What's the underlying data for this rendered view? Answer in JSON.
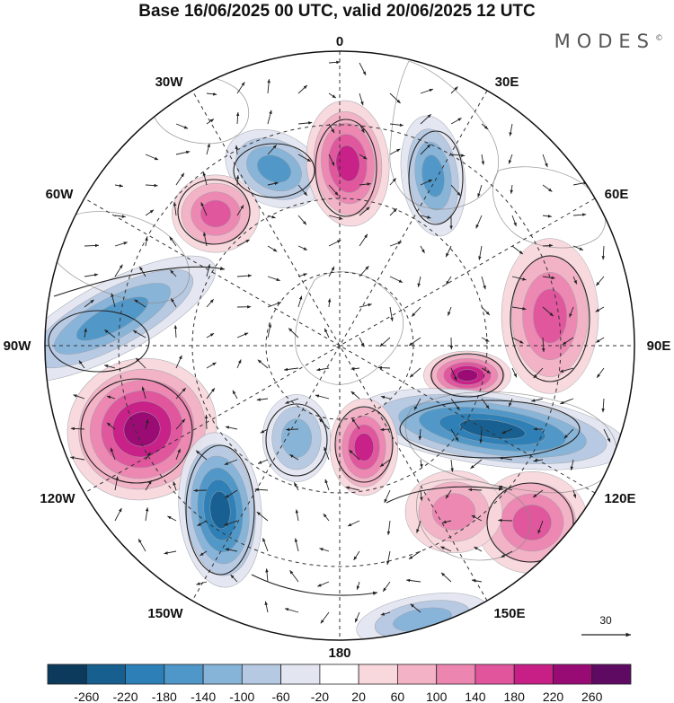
{
  "title": "Base 16/06/2025 00 UTC, valid 20/06/2025 12 UTC",
  "brand": "MODES",
  "brand_mark": "©",
  "longitude_labels": {
    "lon_0": "0",
    "lon_30e": "30E",
    "lon_60e": "60E",
    "lon_90e": "90E",
    "lon_120e": "120E",
    "lon_150e": "150E",
    "lon_180": "180",
    "lon_150w": "150W",
    "lon_120w": "120W",
    "lon_90w": "90W",
    "lon_60w": "60W",
    "lon_30w": "30W"
  },
  "vector_reference": {
    "value": "30"
  },
  "colorbar": {
    "ticks": [
      "-260",
      "-220",
      "-180",
      "-140",
      "-100",
      "-60",
      "-20",
      "20",
      "60",
      "100",
      "140",
      "180",
      "220",
      "260"
    ],
    "colors": [
      "#0b3a5c",
      "#175f8f",
      "#2d7fb7",
      "#4f97c8",
      "#86b3d8",
      "#b6c9e2",
      "#e3e6f1",
      "#ffffff",
      "#f8d7dd",
      "#f3b2c6",
      "#ec86b1",
      "#e0559c",
      "#c71f86",
      "#980b74",
      "#5e0a63"
    ]
  },
  "anomalies": [
    {
      "name": "northwest-low",
      "value": -140
    },
    {
      "name": "north-high",
      "value": 180
    },
    {
      "name": "north-east-low",
      "value": -140
    },
    {
      "name": "northwest-high",
      "value": 140
    },
    {
      "name": "west-trough",
      "value": -140
    },
    {
      "name": "east-high",
      "value": 140
    },
    {
      "name": "east-center-high",
      "value": 220
    },
    {
      "name": "east-trough",
      "value": -220
    },
    {
      "name": "southwest-high",
      "value": 220
    },
    {
      "name": "south-west-low",
      "value": -220
    },
    {
      "name": "south-center-high",
      "value": 180
    },
    {
      "name": "south-center-low",
      "value": -100
    },
    {
      "name": "southeast-high",
      "value": 140
    },
    {
      "name": "south-high",
      "value": 100
    },
    {
      "name": "south-low",
      "value": -100
    }
  ]
}
